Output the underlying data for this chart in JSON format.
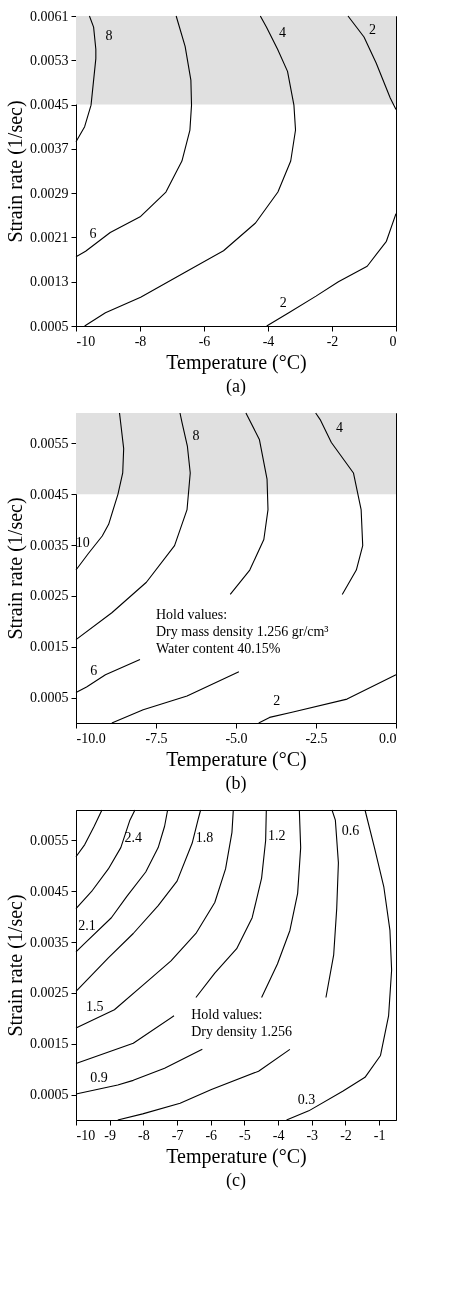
{
  "chart_data": [
    {
      "type": "line",
      "title": "(a)",
      "xlabel": "Temperature (°C)",
      "ylabel": "Strain rate (1/sec)",
      "xlim": [
        -10,
        0
      ],
      "xticks": [
        -10,
        -8,
        -6,
        -4,
        -2,
        0
      ],
      "ylim": [
        0.0005,
        0.0061
      ],
      "yticks": [
        0.0005,
        0.0013,
        0.0021,
        0.0029,
        0.0037,
        0.0045,
        0.0053,
        0.0061
      ],
      "bands": [
        {
          "axis": "y",
          "from": 0.0045,
          "to": 0.0061,
          "color": "#e0e0e0"
        }
      ],
      "series": [
        {
          "name": "8",
          "color": "#000000",
          "x": [
            -9.58,
            -9.45,
            -9.38,
            -9.38,
            -9.53,
            -9.73,
            -10
          ],
          "values": [
            0.0061,
            0.0059,
            0.0055,
            0.00533,
            0.00449,
            0.0041,
            0.00383
          ]
        },
        {
          "name": "6",
          "color": "#000000",
          "x": [
            -10,
            -9.7,
            -8.93,
            -7.98,
            -7.19,
            -6.69,
            -6.44,
            -6.39,
            -6.41,
            -6.59,
            -6.87
          ],
          "values": [
            0.00175,
            0.00185,
            0.00219,
            0.00248,
            0.00292,
            0.00348,
            0.00404,
            0.00449,
            0.00494,
            0.00555,
            0.0061
          ]
        },
        {
          "name": "4",
          "color": "#000000",
          "x": [
            -4.24,
            -4.05,
            -3.7,
            -3.39,
            -3.19,
            -3.14,
            -3.29,
            -3.69,
            -4.39,
            -5.39,
            -6.59,
            -7.98,
            -9.08,
            -9.73
          ],
          "values": [
            0.0061,
            0.0059,
            0.0055,
            0.0051,
            0.00449,
            0.00404,
            0.00348,
            0.00292,
            0.00236,
            0.00186,
            0.00147,
            0.00102,
            0.00074,
            0.0005
          ]
        },
        {
          "name": "2",
          "color": "#000000",
          "x": [
            -1.5,
            -1.0,
            -0.62,
            -0.18,
            0
          ],
          "values": [
            0.0061,
            0.00572,
            0.00525,
            0.00462,
            0.00441
          ]
        },
        {
          "name": "2",
          "color": "#000000",
          "x": [
            -4.04,
            -3.35,
            -2.5,
            -1.8,
            -0.9,
            -0.3,
            0
          ],
          "values": [
            0.0005,
            0.00074,
            0.00104,
            0.0013,
            0.00158,
            0.00203,
            0.00253
          ]
        }
      ]
    },
    {
      "type": "line",
      "title": "(b)",
      "xlabel": "Temperature (°C)",
      "ylabel": "Strain rate (1/sec)",
      "xlim": [
        -10,
        0
      ],
      "xticks": [
        {
          "value": -10,
          "label": "-10.0"
        },
        -7.5,
        {
          "value": -5,
          "label": "-5.0"
        },
        -2.5,
        {
          "value": 0,
          "label": "0.0"
        }
      ],
      "ylim": [
        0,
        0.0061
      ],
      "yticks": [
        0.0005,
        0.0015,
        0.0025,
        0.0035,
        0.0045,
        0.0055
      ],
      "bands": [
        {
          "axis": "y",
          "from": 0.0045,
          "to": 0.0061,
          "color": "#e0e0e0"
        }
      ],
      "series": [
        {
          "name": "10",
          "color": "#000000",
          "x": [
            -10,
            -9.62,
            -9.18,
            -8.98,
            -8.69,
            -8.54,
            -8.51,
            -8.64
          ],
          "values": [
            0.00301,
            0.00333,
            0.00368,
            0.00391,
            0.0045,
            0.00492,
            0.0054,
            0.0061
          ]
        },
        {
          "name": "8",
          "color": "#000000",
          "x": [
            -6.75,
            -6.69,
            -6.52,
            -6.43,
            -6.53,
            -6.92,
            -7.8,
            -8.88,
            -10
          ],
          "values": [
            0.0061,
            0.00592,
            0.00545,
            0.00492,
            0.0042,
            0.00349,
            0.00277,
            0.00217,
            0.00164
          ]
        },
        {
          "color": "#000000",
          "x": [
            -4.69,
            -4.27,
            -4.03,
            -4.0,
            -4.13,
            -4.57,
            -5.18
          ],
          "values": [
            0.0061,
            0.00558,
            0.0048,
            0.0042,
            0.00361,
            0.00301,
            0.00253
          ]
        },
        {
          "name": "6",
          "color": "#000000",
          "x": [
            -10,
            -9.67,
            -9.08,
            -8.0
          ],
          "values": [
            0.0006,
            0.00071,
            0.00095,
            0.00125
          ]
        },
        {
          "name": "4",
          "color": "#000000",
          "x": [
            -2.51,
            -2.37,
            -2.02,
            -1.33,
            -1.09,
            -1.04,
            -1.24,
            -1.68
          ],
          "values": [
            0.0061,
            0.00597,
            0.00552,
            0.00492,
            0.0042,
            0.00349,
            0.00301,
            0.00253
          ]
        },
        {
          "color": "#000000",
          "x": [
            -4.91,
            -6.53,
            -7.9,
            -8.88
          ],
          "values": [
            0.00101,
            0.00053,
            0.00026,
            0
          ]
        },
        {
          "name": "2",
          "color": "#000000",
          "x": [
            -4.29,
            -3.95,
            -3.25,
            -1.53,
            0
          ],
          "values": [
            0,
            0.00011,
            0.00021,
            0.00047,
            0.00095
          ]
        }
      ],
      "annotations": [
        "Hold values:",
        "Dry mass density 1.256 gr/cm³",
        "Water content 40.15%"
      ]
    },
    {
      "type": "line",
      "title": "(c)",
      "xlabel": "Temperature (°C)",
      "ylabel": "Strain rate (1/sec)",
      "xlim": [
        -10,
        -0.5
      ],
      "xticks": [
        -10,
        -9,
        -8,
        -7,
        -6,
        -5,
        -4,
        -3,
        -2,
        -1
      ],
      "ylim": [
        0,
        0.0061
      ],
      "yticks": [
        0.0005,
        0.0015,
        0.0025,
        0.0035,
        0.0045,
        0.0055
      ],
      "series": [
        {
          "color": "#000000",
          "x": [
            -9.23,
            -9.46,
            -9.74,
            -10
          ],
          "values": [
            0.0061,
            0.00578,
            0.00542,
            0.00518
          ]
        },
        {
          "name": "2.4",
          "color": "#000000",
          "x": [
            -8.25,
            -8.4,
            -8.67,
            -9.04,
            -9.51,
            -10
          ],
          "values": [
            0.0061,
            0.0059,
            0.00536,
            0.00494,
            0.00452,
            0.00416
          ]
        },
        {
          "name": "2.1",
          "color": "#000000",
          "x": [
            -10,
            -9.75,
            -8.95,
            -8.49,
            -7.93,
            -7.56,
            -7.37,
            -7.28
          ],
          "values": [
            0.00331,
            0.00347,
            0.00398,
            0.0044,
            0.00488,
            0.00536,
            0.00578,
            0.0061
          ]
        },
        {
          "name": "1.8",
          "color": "#000000",
          "x": [
            -6.3,
            -6.38,
            -6.55,
            -7.0,
            -7.56,
            -8.3,
            -9.04,
            -10
          ],
          "values": [
            0.0061,
            0.0059,
            0.00545,
            0.0047,
            0.00422,
            0.00367,
            0.00319,
            0.00253
          ]
        },
        {
          "name": "1.5",
          "color": "#000000",
          "x": [
            -10,
            -8.86,
            -8.02,
            -7.18,
            -6.44,
            -5.88,
            -5.56,
            -5.37,
            -5.33
          ],
          "values": [
            0.00181,
            0.00217,
            0.00265,
            0.00313,
            0.00367,
            0.00428,
            0.00494,
            0.00566,
            0.0061
          ]
        },
        {
          "name": "1.2",
          "color": "#000000",
          "x": [
            -4.35,
            -4.37,
            -4.49,
            -4.77,
            -5.23,
            -5.88,
            -6.44
          ],
          "values": [
            0.0061,
            0.0055,
            0.00476,
            0.00398,
            0.00337,
            0.00289,
            0.00241
          ]
        },
        {
          "color": "#000000",
          "x": [
            -7.09,
            -8.3,
            -10
          ],
          "values": [
            0.00205,
            0.00151,
            0.00111
          ]
        },
        {
          "color": "#000000",
          "x": [
            -3.37,
            -3.33,
            -3.42,
            -3.65,
            -4.02,
            -4.49
          ],
          "values": [
            0.0061,
            0.00536,
            0.00446,
            0.00373,
            0.00307,
            0.00241
          ]
        },
        {
          "name": "0.9",
          "color": "#000000",
          "x": [
            -10,
            -8.76,
            -8.3,
            -7.37,
            -6.25
          ],
          "values": [
            0.00051,
            0.00069,
            0.00078,
            0.00102,
            0.00139
          ]
        },
        {
          "name": "0.6",
          "color": "#000000",
          "x": [
            -2.4,
            -2.3,
            -2.21,
            -2.26,
            -2.35,
            -2.58
          ],
          "values": [
            0.0061,
            0.0059,
            0.00506,
            0.00416,
            0.00325,
            0.00241
          ]
        },
        {
          "color": "#000000",
          "x": [
            -3.65,
            -4.58,
            -5.98,
            -6.91,
            -8.02,
            -8.76
          ],
          "values": [
            0.00139,
            0.00096,
            0.0006,
            0.00033,
            0.00012,
            0
          ]
        },
        {
          "name": "0.3",
          "color": "#000000",
          "x": [
            -3.75,
            -3.09,
            -2.07,
            -1.42,
            -0.96,
            -0.72,
            -0.63,
            -0.68,
            -0.86,
            -1.14,
            -1.42
          ],
          "values": [
            0,
            0.00018,
            0.00057,
            0.00084,
            0.00127,
            0.00205,
            0.00295,
            0.00373,
            0.00458,
            0.00536,
            0.0061
          ]
        }
      ],
      "annotations": [
        "Hold values:",
        "Dry density 1.256"
      ]
    }
  ]
}
